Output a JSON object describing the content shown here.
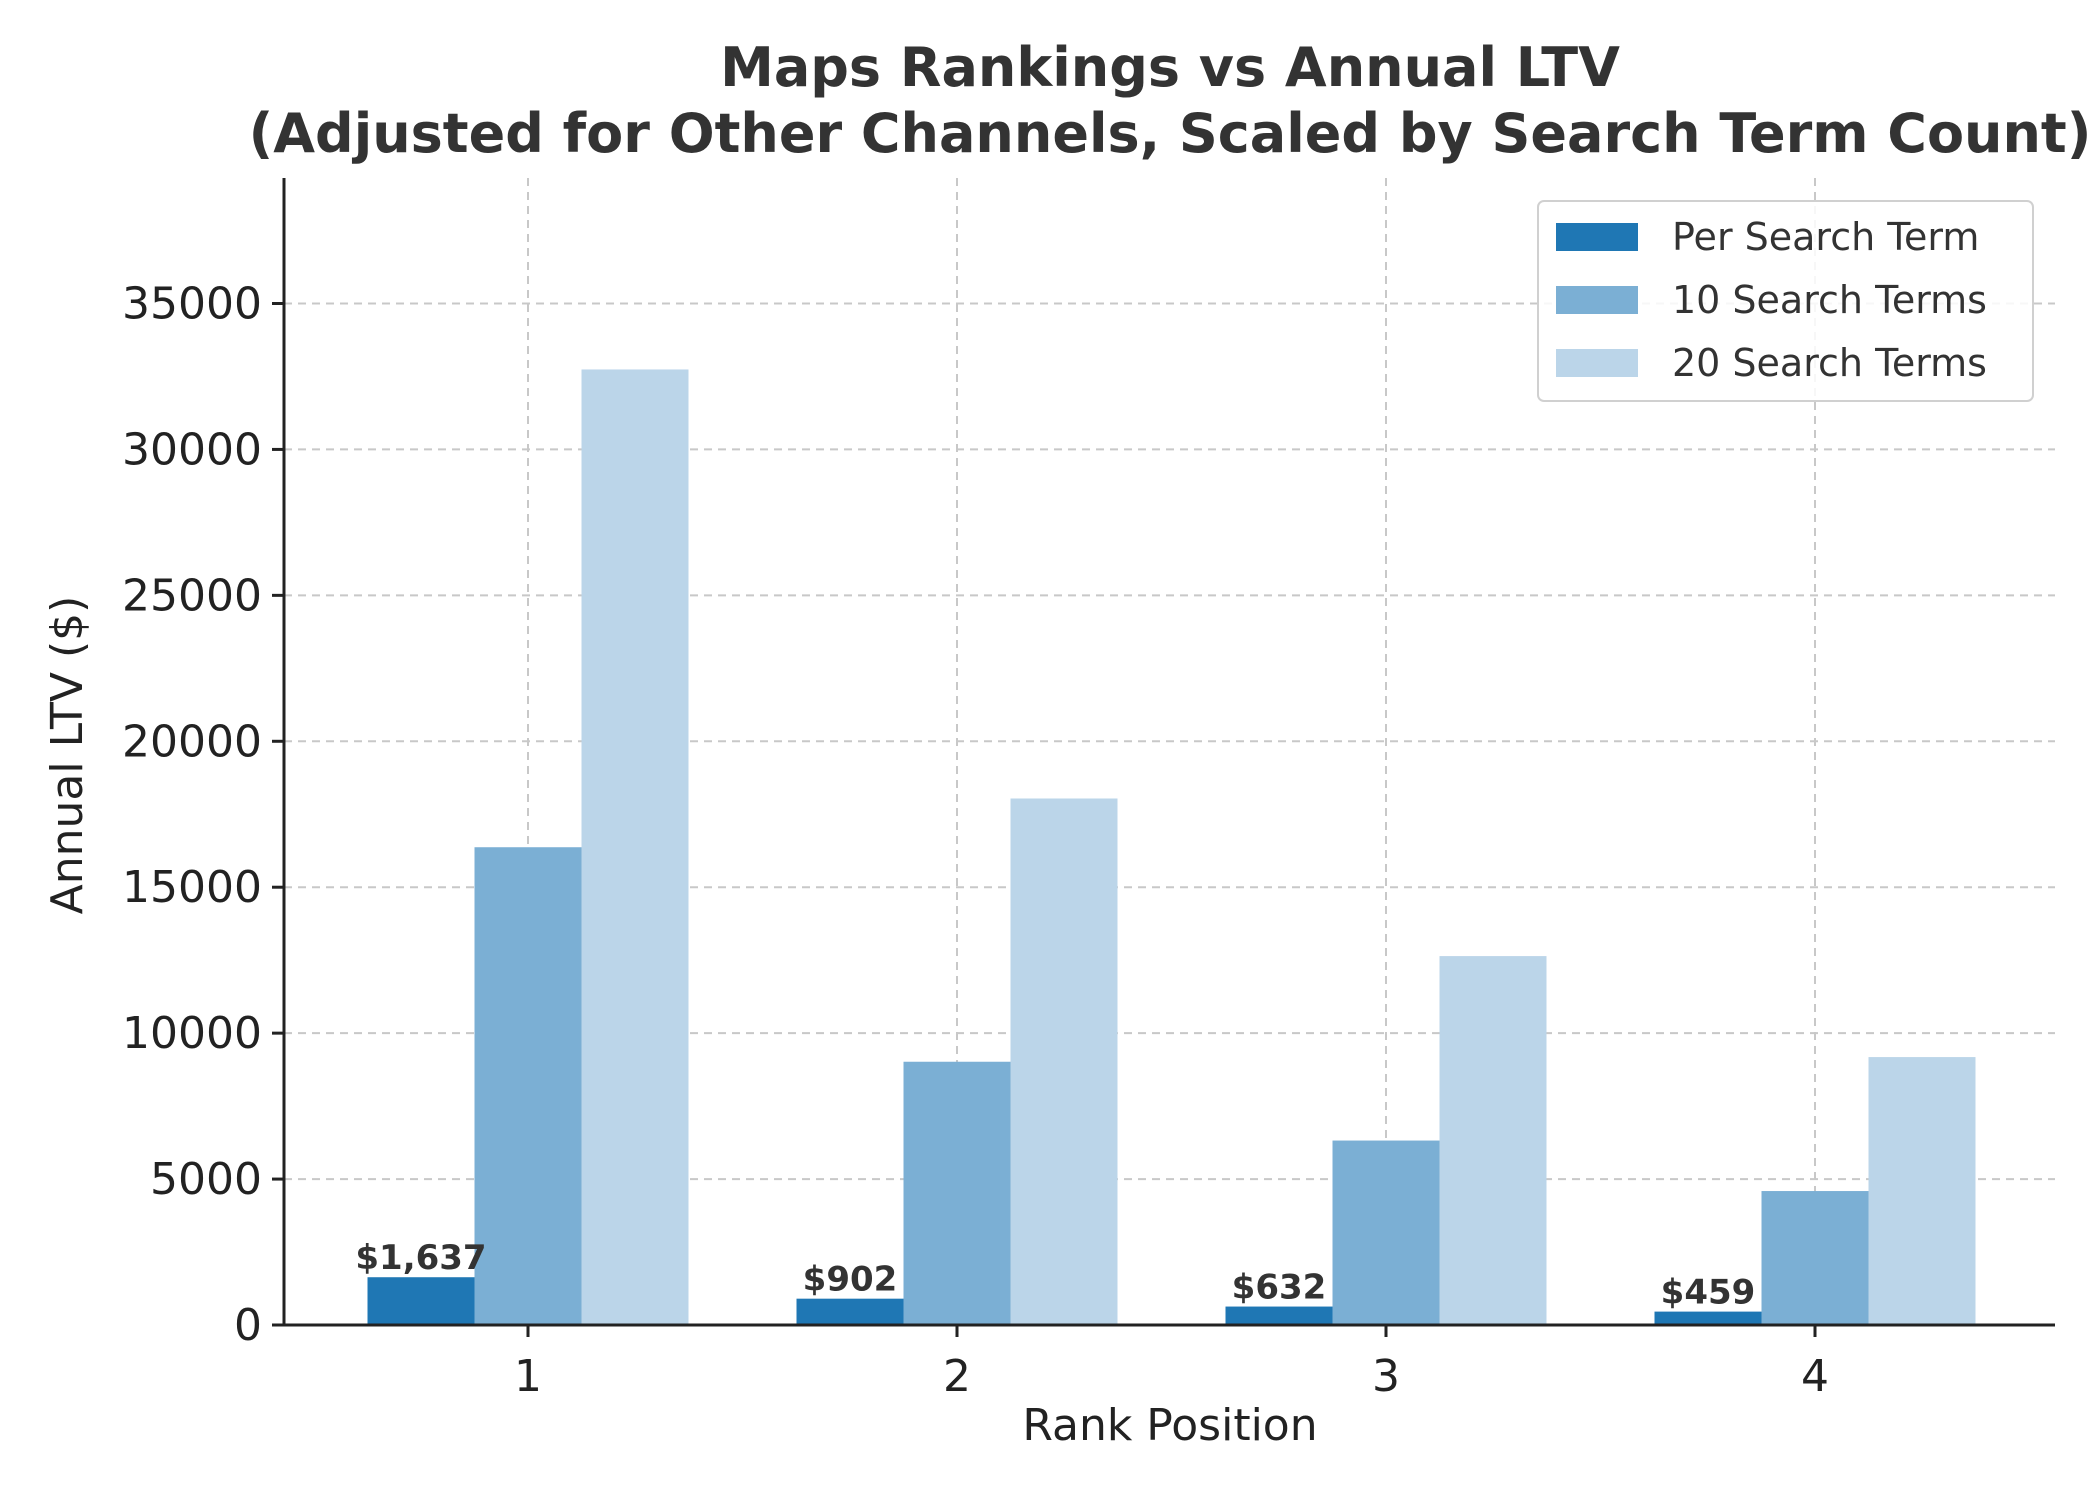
{
  "chart_data": {
    "type": "bar",
    "title": "Maps Rankings vs Annual LTV",
    "subtitle": "(Adjusted for Other Channels, Scaled by Search Term Count)",
    "xlabel": "Rank Position",
    "ylabel": "Annual LTV ($)",
    "categories": [
      "1",
      "2",
      "3",
      "4"
    ],
    "ylim": [
      0,
      39300
    ],
    "yticks": [
      0,
      5000,
      10000,
      15000,
      20000,
      25000,
      30000,
      35000
    ],
    "grid": true,
    "legend_position": "top-right",
    "series": [
      {
        "name": "Per Search Term",
        "color": "#1f77b4",
        "values": [
          1637,
          902,
          632,
          459
        ]
      },
      {
        "name": "10 Search Terms",
        "color": "#7bafd4",
        "values": [
          16370,
          9020,
          6320,
          4590
        ]
      },
      {
        "name": "20 Search Terms",
        "color": "#bbd5e9",
        "values": [
          32740,
          18040,
          12640,
          9180
        ]
      }
    ],
    "data_labels": [
      "$1,637",
      "$902",
      "$632",
      "$459"
    ]
  }
}
